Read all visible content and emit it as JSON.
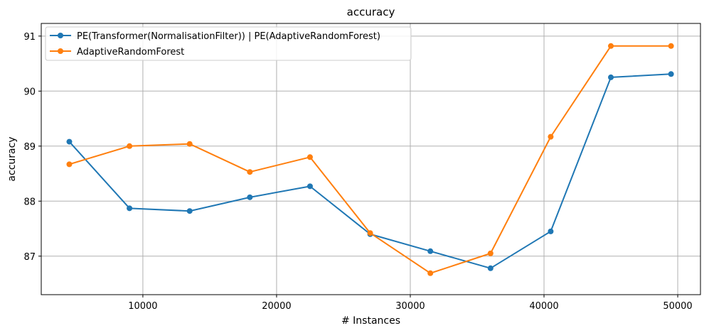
{
  "chart_data": {
    "type": "line",
    "title": "accuracy",
    "xlabel": "# Instances",
    "ylabel": "accuracy",
    "xlim": [
      2400,
      51700
    ],
    "ylim": [
      86.3,
      91.23
    ],
    "xticks": [
      10000,
      20000,
      30000,
      40000,
      50000
    ],
    "yticks": [
      87,
      88,
      89,
      90,
      91
    ],
    "grid": true,
    "legend_position": "upper-left",
    "x": [
      4500,
      9000,
      13500,
      18000,
      22500,
      27000,
      31500,
      36000,
      40500,
      45000,
      49500
    ],
    "series": [
      {
        "name": "PE(Transformer(NormalisationFilter)) | PE(AdaptiveRandomForest)",
        "color": "#1f77b4",
        "values": [
          89.08,
          87.87,
          87.82,
          88.07,
          88.27,
          87.4,
          87.09,
          86.78,
          87.45,
          90.25,
          90.31
        ]
      },
      {
        "name": "AdaptiveRandomForest",
        "color": "#ff7f0e",
        "values": [
          88.67,
          89.0,
          89.04,
          88.53,
          88.8,
          87.42,
          86.69,
          87.05,
          89.17,
          90.82,
          90.82
        ]
      }
    ]
  }
}
